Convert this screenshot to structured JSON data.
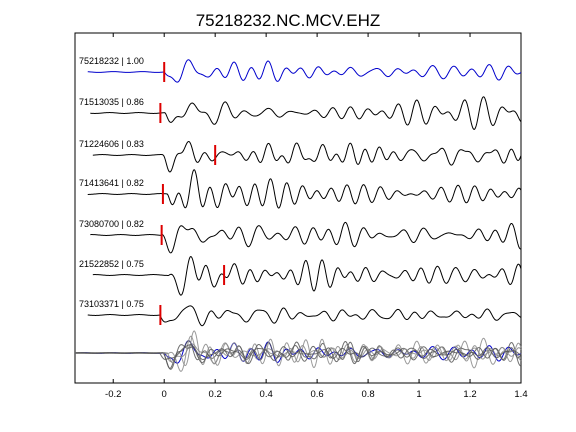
{
  "chart_data": {
    "type": "line",
    "title": "75218232.NC.MCV.EHZ",
    "xlabel": "",
    "ylabel": "",
    "xlim": [
      -0.35,
      1.4
    ],
    "xticks": [
      -0.2,
      0,
      0.2,
      0.4,
      0.6,
      0.8,
      1,
      1.2,
      1.4
    ],
    "xtick_labels": [
      "-0.2",
      "0",
      "0.2",
      "0.4",
      "0.6",
      "0.8",
      "1",
      "1.2",
      "1.4"
    ],
    "grid": false,
    "legend": "none",
    "colors": {
      "reference": "#0000cc",
      "trace": "#000000",
      "pick": "#dd0000",
      "stack": "#888888"
    },
    "series": [
      {
        "label": "75218232 | 1.00",
        "pick_time": 0.0,
        "color": "#0000cc"
      },
      {
        "label": "71513035 | 0.86",
        "pick_time": -0.015,
        "color": "#000000"
      },
      {
        "label": "71224606 | 0.83",
        "pick_time": 0.2,
        "color": "#000000"
      },
      {
        "label": "71413641 | 0.82",
        "pick_time": -0.005,
        "color": "#000000"
      },
      {
        "label": "73080700 | 0.82",
        "pick_time": -0.01,
        "color": "#000000"
      },
      {
        "label": "21522852 | 0.75",
        "pick_time": 0.235,
        "color": "#000000"
      },
      {
        "label": "73103371 | 0.75",
        "pick_time": -0.015,
        "color": "#000000"
      }
    ],
    "overlay": {
      "description": "all traces overlaid, aligned at 0"
    }
  }
}
